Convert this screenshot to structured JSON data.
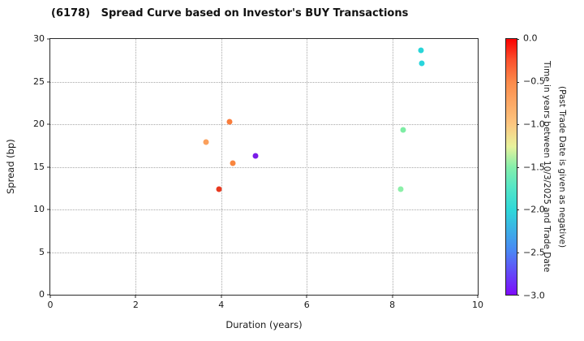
{
  "title": "(6178)   Spread Curve based on Investor's BUY Transactions",
  "chart_data": {
    "type": "scatter",
    "title": "(6178)   Spread Curve based on Investor's BUY Transactions",
    "xlabel": "Duration (years)",
    "ylabel": "Spread (bp)",
    "xlim": [
      0,
      10
    ],
    "ylim": [
      0,
      30
    ],
    "x_ticks": [
      0,
      2,
      4,
      6,
      8,
      10
    ],
    "y_ticks": [
      0,
      5,
      10,
      15,
      20,
      25,
      30
    ],
    "grid": true,
    "legend_position": "colorbar-right",
    "points": [
      {
        "x": 3.65,
        "y": 17.9,
        "color": "#fba05c"
      },
      {
        "x": 4.2,
        "y": 20.3,
        "color": "#f97c3b"
      },
      {
        "x": 4.27,
        "y": 15.4,
        "color": "#f9863f"
      },
      {
        "x": 3.95,
        "y": 12.4,
        "color": "#e8391f"
      },
      {
        "x": 4.8,
        "y": 16.3,
        "color": "#7a1ce8"
      },
      {
        "x": 8.25,
        "y": 19.3,
        "color": "#7deda4"
      },
      {
        "x": 8.2,
        "y": 12.4,
        "color": "#8cf0a9"
      },
      {
        "x": 8.68,
        "y": 28.7,
        "color": "#29d5d8"
      },
      {
        "x": 8.7,
        "y": 27.1,
        "color": "#29d5dc"
      }
    ],
    "colorbar": {
      "label_line1": "Time in years between 10/3/2025 and Trade Date",
      "label_line2": "(Past Trade Date is given as negative)",
      "tick_labels": [
        "0.0",
        "−0.5",
        "−1.0",
        "−1.5",
        "−2.0",
        "−2.5",
        "−3.0"
      ],
      "tick_values": [
        0,
        -0.5,
        -1.0,
        -1.5,
        -2.0,
        -2.5,
        -3.0
      ],
      "max": 0,
      "min": -3,
      "gradient_stops": [
        {
          "pos": 0.0,
          "color": "#fa0000"
        },
        {
          "pos": 0.08,
          "color": "#fb4f2c"
        },
        {
          "pos": 0.17,
          "color": "#fb8b4b"
        },
        {
          "pos": 0.33,
          "color": "#fdc57f"
        },
        {
          "pos": 0.42,
          "color": "#e8f29c"
        },
        {
          "pos": 0.5,
          "color": "#86efab"
        },
        {
          "pos": 0.58,
          "color": "#55e6c6"
        },
        {
          "pos": 0.67,
          "color": "#2fd7d9"
        },
        {
          "pos": 0.83,
          "color": "#4a86f4"
        },
        {
          "pos": 1.0,
          "color": "#7d0bfa"
        }
      ]
    }
  }
}
